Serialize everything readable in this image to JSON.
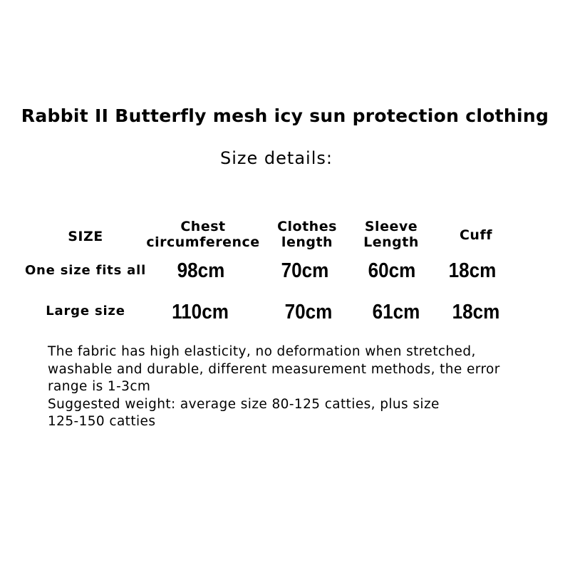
{
  "title": "Rabbit II Butterfly mesh icy sun protection clothing",
  "subtitle": "Size details:",
  "table": {
    "headers": [
      "SIZE",
      "Chest\ncircumference",
      "Clothes\nlength",
      "Sleeve\nLength",
      "Cuff"
    ],
    "header_lines": [
      [
        "SIZE"
      ],
      [
        "Chest",
        "circumference"
      ],
      [
        "Clothes",
        "length"
      ],
      [
        "Sleeve",
        "Length"
      ],
      [
        "Cuff"
      ]
    ],
    "rows": [
      {
        "size": "One size fits all",
        "chest": "98cm",
        "length": "70cm",
        "sleeve": "60cm",
        "cuff": "18cm"
      },
      {
        "size": "Large size",
        "chest": "110cm",
        "length": "70cm",
        "sleeve": "61cm",
        "cuff": "18cm"
      }
    ]
  },
  "notes": [
    "The fabric has high elasticity, no deformation when stretched,",
    "washable and durable, different measurement methods, the error",
    "range is 1-3cm",
    "Suggested weight: average size 80-125 catties, plus size",
    "125-150 catties"
  ]
}
